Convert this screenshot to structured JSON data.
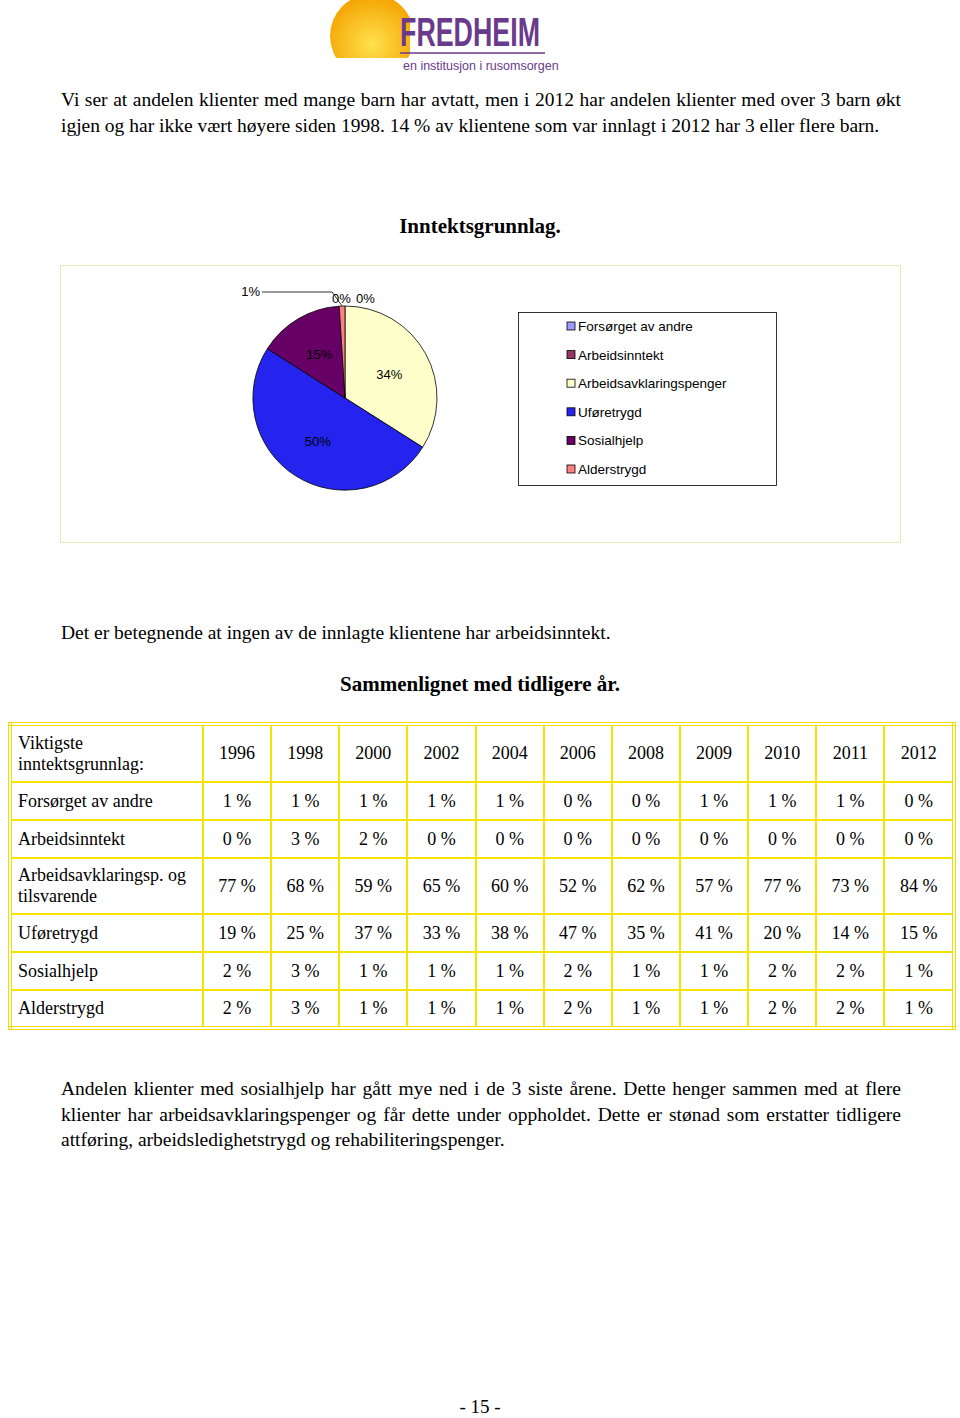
{
  "header": {
    "logo": "FREDHEIM",
    "tagline": "en institusjon i rusomsorgen"
  },
  "paragraphs": [
    "Vi ser at andelen klienter med mange barn har avtatt, men i 2012 har andelen klienter med over 3 barn økt igjen og har ikke vært høyere siden 1998. 14 % av klientene som var innlagt i 2012 har 3 eller flere barn.",
    "Det er betegnende at ingen av de innlagte klientene har arbeidsinntekt.",
    "Andelen klienter med sosialhjelp har gått mye ned i de 3 siste årene. Dette henger sammen med at flere klienter har arbeidsavklaringspenger og får dette under oppholdet. Dette er stønad som erstatter tidligere attføring, arbeidsledighetstrygd og rehabiliteringspenger."
  ],
  "chart_data": {
    "type": "pie",
    "title": "Inntektsgrunnlag.",
    "categories": [
      "Forsørget av andre",
      "Arbeidsinntekt",
      "Arbeidsavklaringspenger",
      "Uføretrygd",
      "Sosialhjelp",
      "Alderstrygd"
    ],
    "values": [
      0,
      0,
      34,
      50,
      15,
      1
    ],
    "value_labels": [
      "0%",
      "0%",
      "34%",
      "50%",
      "15%",
      "1%"
    ],
    "colors": [
      "#9999ff",
      "#993366",
      "#ffffcc",
      "#2424ee",
      "#660066",
      "#ff8080"
    ],
    "data_labels": true,
    "legend": "right"
  },
  "section_heading": "Sammenlignet med tidligere år.",
  "table": {
    "columns": [
      "Viktigste inntektsgrunnlag:",
      "1996",
      "1998",
      "2000",
      "2002",
      "2004",
      "2006",
      "2008",
      "2009",
      "2010",
      "2011",
      "2012"
    ],
    "rows": [
      [
        "Forsørget av andre",
        "1 %",
        "1 %",
        "1 %",
        "1 %",
        "1 %",
        "0 %",
        "0 %",
        "1 %",
        "1 %",
        "1 %",
        "0 %"
      ],
      [
        "Arbeidsinntekt",
        "0 %",
        "3 %",
        "2 %",
        "0 %",
        "0 %",
        "0 %",
        "0 %",
        "0 %",
        "0 %",
        "0 %",
        "0 %"
      ],
      [
        "Arbeidsavklaringsp. og tilsvarende",
        "77 %",
        "68 %",
        "59 %",
        "65 %",
        "60 %",
        "52 %",
        "62 %",
        "57 %",
        "77 %",
        "73 %",
        "84 %"
      ],
      [
        "Uføretrygd",
        "19 %",
        "25 %",
        "37 %",
        "33 %",
        "38 %",
        "47 %",
        "35 %",
        "41 %",
        "20 %",
        "14 %",
        "15 %"
      ],
      [
        "Sosialhjelp",
        "2 %",
        "3 %",
        "1 %",
        "1 %",
        "1 %",
        "2 %",
        "1 %",
        "1 %",
        "2 %",
        "2 %",
        "1 %"
      ],
      [
        "Alderstrygd",
        "2 %",
        "3 %",
        "1 %",
        "1 %",
        "1 %",
        "2 %",
        "1 %",
        "1 %",
        "2 %",
        "2 %",
        "1 %"
      ]
    ]
  },
  "footer": {
    "page_number": "- 15 -"
  }
}
